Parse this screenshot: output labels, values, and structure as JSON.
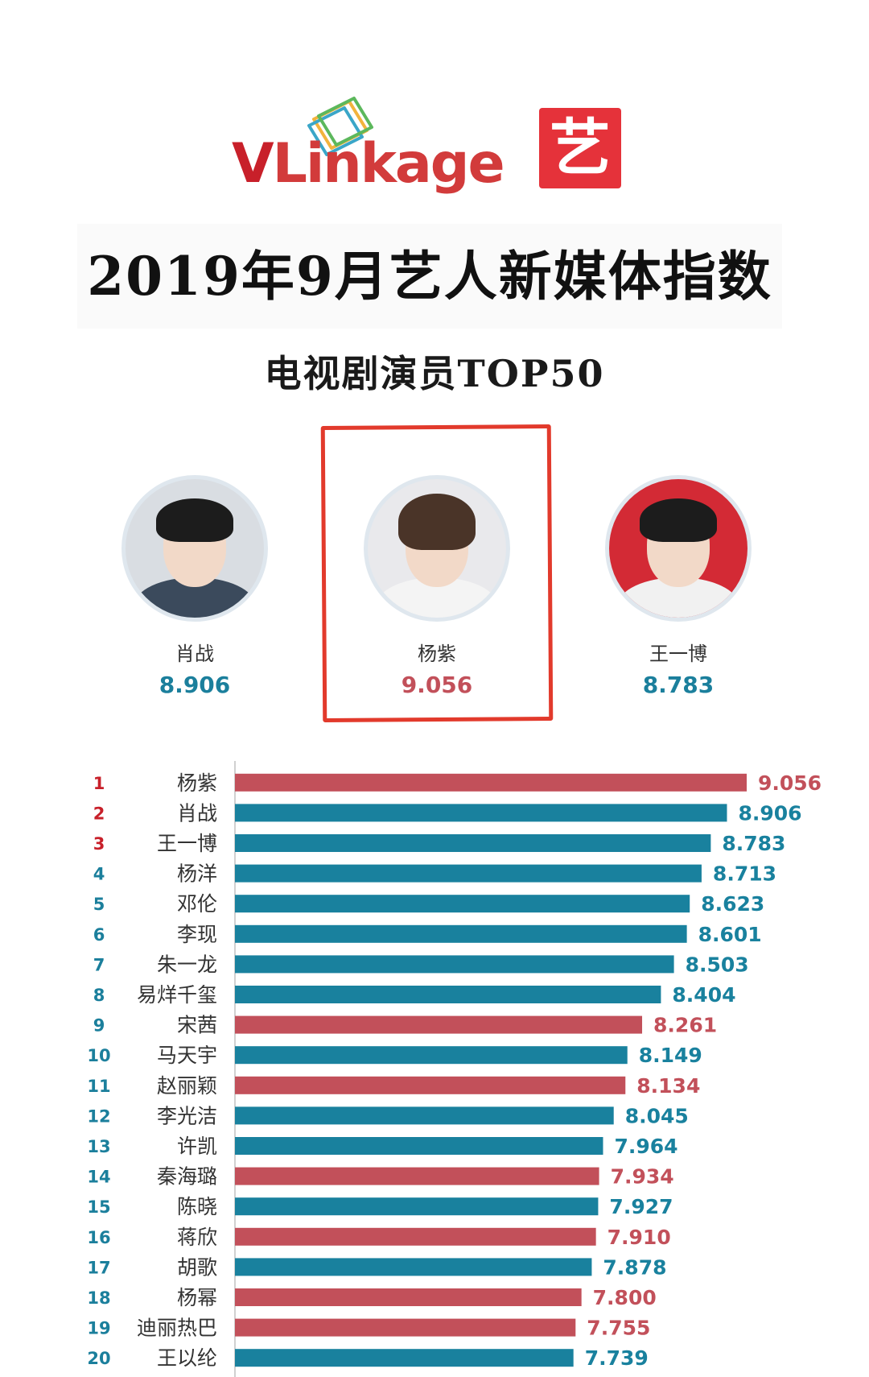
{
  "brand": {
    "name_v": "V",
    "name_rest": "Linkage",
    "badge": "艺"
  },
  "title": "2019年9月艺人新媒体指数",
  "subtitle": "电视剧演员TOP50",
  "colors": {
    "red": "#c2505a",
    "teal": "#19819e",
    "rank_red": "#c8202a",
    "rank_teal": "#1b7f9c",
    "highlight": "#e23a2c"
  },
  "podium": [
    {
      "name": "肖战",
      "score": "8.906",
      "score_color": "#1b7f9c",
      "avatar": "male-portrait"
    },
    {
      "name": "杨紫",
      "score": "9.056",
      "score_color": "#c2505a",
      "avatar": "female-portrait"
    },
    {
      "name": "王一博",
      "score": "8.783",
      "score_color": "#1b7f9c",
      "avatar": "male-portrait-red-bg"
    }
  ],
  "chart_data": {
    "type": "bar",
    "orientation": "horizontal",
    "title": "",
    "xlabel": "",
    "ylabel": "",
    "xlim": [
      0,
      9.056
    ],
    "grid": false,
    "categories": [
      "杨紫",
      "肖战",
      "王一博",
      "杨洋",
      "邓伦",
      "李现",
      "朱一龙",
      "易烊千玺",
      "宋茜",
      "马天宇",
      "赵丽颖",
      "李光洁",
      "许凯",
      "秦海璐",
      "陈晓",
      "蒋欣",
      "胡歌",
      "杨幂",
      "迪丽热巴",
      "王以纶"
    ],
    "ranks": [
      "1",
      "2",
      "3",
      "4",
      "5",
      "6",
      "7",
      "8",
      "9",
      "10",
      "11",
      "12",
      "13",
      "14",
      "15",
      "16",
      "17",
      "18",
      "19",
      "20"
    ],
    "values": [
      9.056,
      8.906,
      8.783,
      8.713,
      8.623,
      8.601,
      8.503,
      8.404,
      8.261,
      8.149,
      8.134,
      8.045,
      7.964,
      7.934,
      7.927,
      7.91,
      7.878,
      7.8,
      7.755,
      7.739
    ],
    "labels": [
      "9.056",
      "8.906",
      "8.783",
      "8.713",
      "8.623",
      "8.601",
      "8.503",
      "8.404",
      "8.261",
      "8.149",
      "8.134",
      "8.045",
      "7.964",
      "7.934",
      "7.927",
      "7.910",
      "7.878",
      "7.800",
      "7.755",
      "7.739"
    ],
    "bar_colors": [
      "red",
      "teal",
      "teal",
      "teal",
      "teal",
      "teal",
      "teal",
      "teal",
      "red",
      "teal",
      "red",
      "teal",
      "teal",
      "red",
      "teal",
      "red",
      "teal",
      "red",
      "red",
      "teal"
    ]
  }
}
